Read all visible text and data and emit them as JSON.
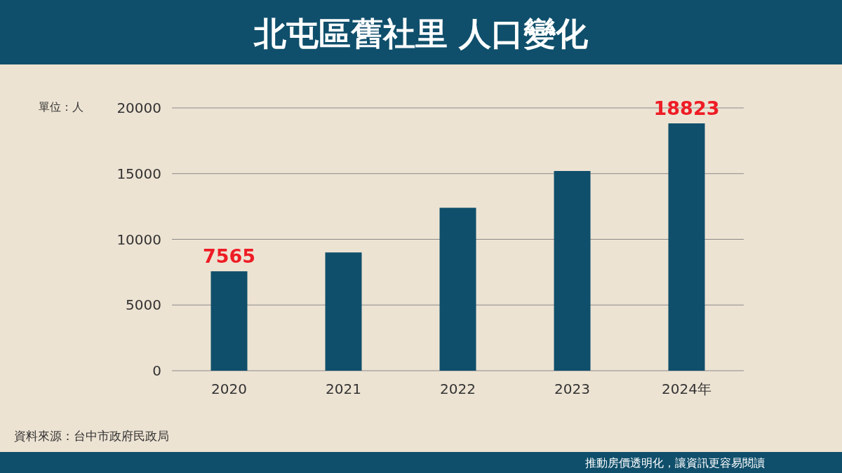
{
  "chart_data": {
    "type": "bar",
    "title": "北屯區舊社里 人口變化",
    "ylabel": "單位：人",
    "categories": [
      "2020",
      "2021",
      "2022",
      "2023",
      "2024年"
    ],
    "values": [
      7565,
      9000,
      12400,
      15200,
      18823
    ],
    "value_labels": [
      "7565",
      null,
      null,
      null,
      "18823"
    ],
    "color": "#0f4f6b",
    "ylim": [
      0,
      20000
    ],
    "yticks": [
      0,
      5000,
      10000,
      15000,
      20000
    ],
    "grid": "y",
    "annotations": [
      "資料來源：台中市政府民政局",
      "推動房價透明化，讓資訊更容易閱讀"
    ]
  }
}
